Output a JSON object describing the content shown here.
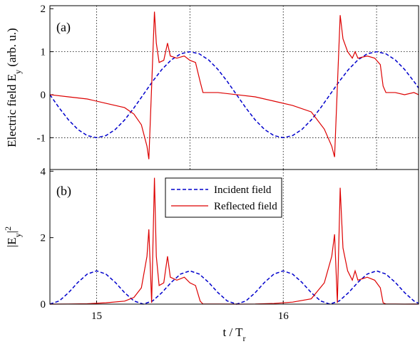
{
  "chart_data": [
    {
      "type": "line",
      "panel_label": "(a)",
      "ylabel": [
        "Electric field E",
        "y",
        " (arb. u.)"
      ],
      "xlim": [
        14.75,
        16.725
      ],
      "ylim": [
        -1.74,
        2.07
      ],
      "yticks": [
        -1,
        0,
        1,
        2
      ],
      "xgrid": [
        15,
        15.5,
        16,
        16.5
      ],
      "ygrid": [
        -1,
        1
      ],
      "series": [
        {
          "color": "#0000cc",
          "dash": true,
          "x": [
            14.75,
            14.8,
            14.85,
            14.9,
            14.95,
            15,
            15.05,
            15.1,
            15.15,
            15.2,
            15.25,
            15.3,
            15.35,
            15.4,
            15.45,
            15.5,
            15.55,
            15.6,
            15.65,
            15.7,
            15.75,
            15.8,
            15.85,
            15.9,
            15.95,
            16,
            16.05,
            16.1,
            16.15,
            16.2,
            16.25,
            16.3,
            16.35,
            16.4,
            16.45,
            16.5,
            16.55,
            16.6,
            16.65,
            16.7,
            16.725
          ],
          "values": [
            0,
            -0.309,
            -0.588,
            -0.809,
            -0.951,
            -1,
            -0.951,
            -0.809,
            -0.588,
            -0.309,
            0,
            0.309,
            0.588,
            0.809,
            0.951,
            1,
            0.951,
            0.809,
            0.588,
            0.309,
            0,
            -0.309,
            -0.588,
            -0.809,
            -0.951,
            -1,
            -0.951,
            -0.809,
            -0.588,
            -0.309,
            0,
            0.309,
            0.588,
            0.809,
            0.951,
            1,
            0.951,
            0.809,
            0.588,
            0.309,
            0.156
          ]
        },
        {
          "color": "#dd0000",
          "dash": false,
          "x": [
            14.75,
            14.85,
            14.95,
            15.05,
            15.15,
            15.2,
            15.24,
            15.27,
            15.28,
            15.295,
            15.31,
            15.32,
            15.335,
            15.36,
            15.38,
            15.395,
            15.43,
            15.47,
            15.5,
            15.53,
            15.555,
            15.57,
            15.65,
            15.75,
            15.85,
            15.95,
            16.05,
            16.15,
            16.22,
            16.26,
            16.275,
            16.29,
            16.305,
            16.32,
            16.345,
            16.37,
            16.385,
            16.4,
            16.45,
            16.49,
            16.52,
            16.535,
            16.55,
            16.6,
            16.65,
            16.7,
            16.725
          ],
          "values": [
            0,
            -0.05,
            -0.1,
            -0.2,
            -0.3,
            -0.45,
            -0.7,
            -1.2,
            -1.5,
            0.2,
            1.93,
            1.2,
            0.75,
            0.8,
            1.2,
            0.9,
            0.85,
            0.9,
            0.8,
            0.75,
            0.3,
            0.05,
            0.05,
            0,
            -0.05,
            -0.15,
            -0.25,
            -0.4,
            -0.8,
            -1.2,
            -1.45,
            0.2,
            1.85,
            1.3,
            1,
            0.85,
            1,
            0.85,
            0.9,
            0.85,
            0.7,
            0.2,
            0.05,
            0.05,
            0,
            0.05,
            0
          ]
        }
      ]
    },
    {
      "type": "line",
      "panel_label": "(b)",
      "ylabel": [
        "|E",
        "y",
        "|",
        "2"
      ],
      "xlabel": [
        "t / T",
        "r"
      ],
      "xlim": [
        14.75,
        16.725
      ],
      "ylim": [
        0,
        4.05
      ],
      "yticks": [
        0,
        2,
        4
      ],
      "xticks": [
        15,
        16
      ],
      "xgrid": [
        15,
        16
      ],
      "legend": "upper center",
      "series": [
        {
          "name": "Incident field",
          "color": "#0000cc",
          "dash": true,
          "x": [
            14.75,
            14.8,
            14.85,
            14.9,
            14.95,
            15,
            15.05,
            15.1,
            15.15,
            15.2,
            15.25,
            15.3,
            15.35,
            15.4,
            15.45,
            15.5,
            15.55,
            15.6,
            15.65,
            15.7,
            15.75,
            15.8,
            15.85,
            15.9,
            15.95,
            16,
            16.05,
            16.1,
            16.15,
            16.2,
            16.25,
            16.3,
            16.35,
            16.4,
            16.45,
            16.5,
            16.55,
            16.6,
            16.65,
            16.7,
            16.725
          ],
          "values": [
            0,
            0.095,
            0.346,
            0.655,
            0.905,
            1,
            0.905,
            0.655,
            0.346,
            0.095,
            0,
            0.095,
            0.346,
            0.655,
            0.905,
            1,
            0.905,
            0.655,
            0.346,
            0.095,
            0,
            0.095,
            0.346,
            0.655,
            0.905,
            1,
            0.905,
            0.655,
            0.346,
            0.095,
            0,
            0.095,
            0.346,
            0.655,
            0.905,
            1,
            0.905,
            0.655,
            0.346,
            0.095,
            0.024
          ]
        },
        {
          "name": "Reflected field",
          "color": "#dd0000",
          "dash": false,
          "x": [
            14.75,
            14.85,
            14.95,
            15.05,
            15.15,
            15.2,
            15.24,
            15.27,
            15.28,
            15.295,
            15.31,
            15.32,
            15.335,
            15.36,
            15.38,
            15.395,
            15.43,
            15.47,
            15.5,
            15.53,
            15.555,
            15.57,
            15.65,
            15.75,
            15.85,
            15.95,
            16.05,
            16.15,
            16.22,
            16.26,
            16.275,
            16.29,
            16.305,
            16.32,
            16.345,
            16.37,
            16.385,
            16.4,
            16.45,
            16.49,
            16.52,
            16.535,
            16.55,
            16.6,
            16.65,
            16.7,
            16.725
          ],
          "values": [
            0,
            0.003,
            0.01,
            0.04,
            0.09,
            0.2,
            0.49,
            1.44,
            2.25,
            0.04,
            3.8,
            1.44,
            0.56,
            0.64,
            1.44,
            0.81,
            0.72,
            0.81,
            0.64,
            0.56,
            0.09,
            0.003,
            0.003,
            0,
            0.003,
            0.02,
            0.06,
            0.16,
            0.64,
            1.44,
            2.1,
            0.04,
            3.5,
            1.69,
            1,
            0.72,
            1,
            0.72,
            0.81,
            0.72,
            0.49,
            0.04,
            0.003,
            0.003,
            0,
            0.003,
            0
          ]
        }
      ]
    }
  ]
}
